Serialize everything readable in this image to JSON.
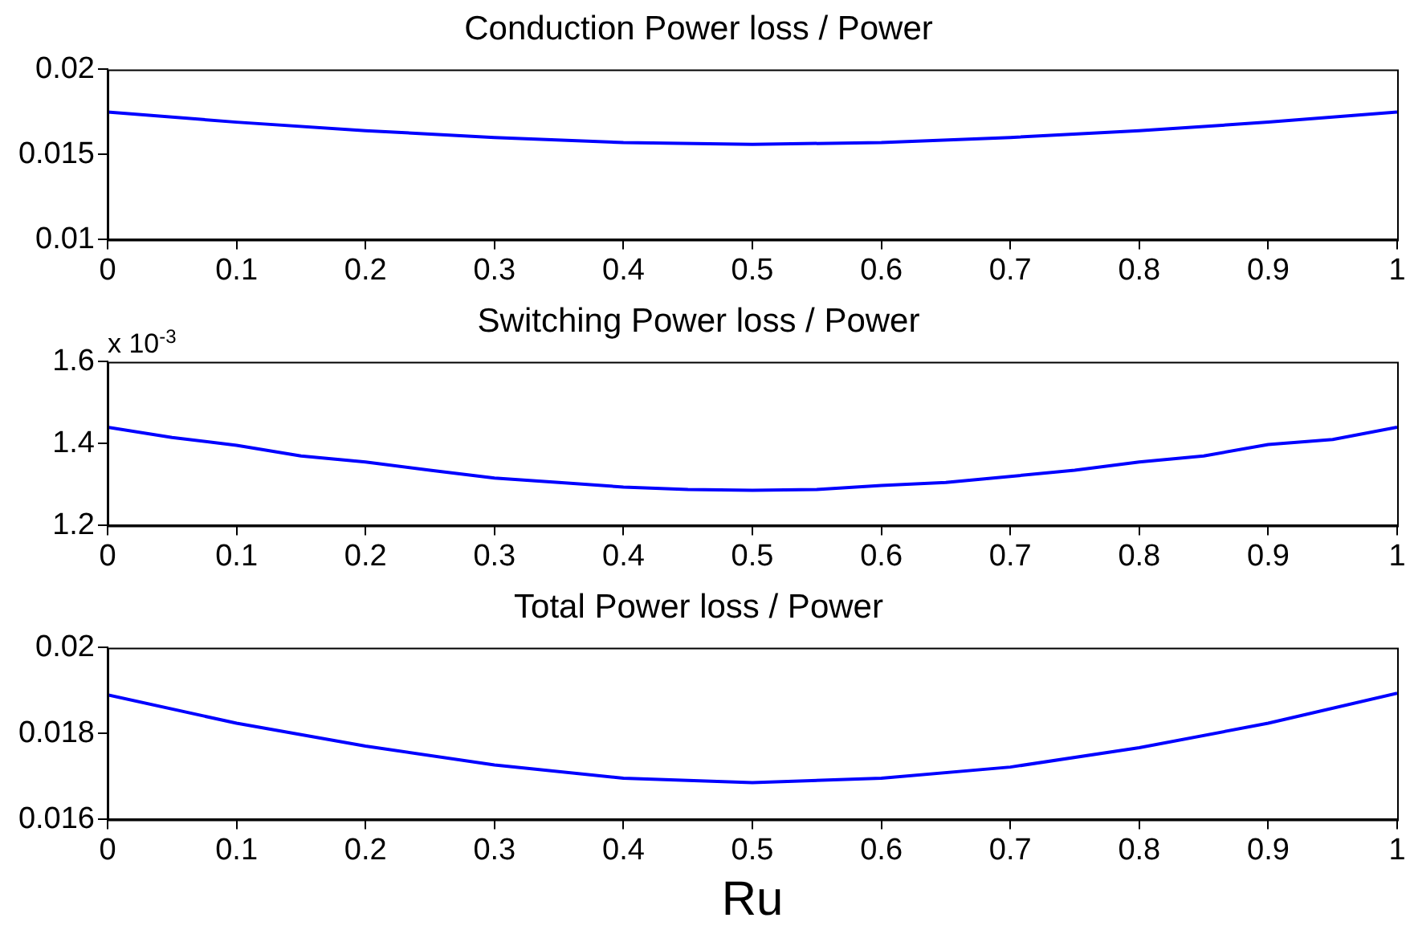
{
  "chart_data": [
    {
      "type": "line",
      "title": "Conduction Power loss / Power",
      "x": [
        0,
        0.1,
        0.2,
        0.3,
        0.4,
        0.5,
        0.6,
        0.7,
        0.8,
        0.9,
        1
      ],
      "series": [
        {
          "color": "#0000ff",
          "values": [
            0.0175,
            0.0169,
            0.0164,
            0.016,
            0.0157,
            0.0156,
            0.0157,
            0.016,
            0.0164,
            0.0169,
            0.0175
          ]
        }
      ],
      "xlim": [
        0,
        1
      ],
      "xticks": [
        0,
        0.1,
        0.2,
        0.3,
        0.4,
        0.5,
        0.6,
        0.7,
        0.8,
        0.9,
        1
      ],
      "ylim": [
        0.01,
        0.02
      ],
      "yticks": [
        0.01,
        0.015,
        0.02
      ],
      "grid": false,
      "legend": false
    },
    {
      "type": "line",
      "title": "Switching Power loss / Power",
      "annotations": [
        "x 10$^{-3}$"
      ],
      "x": [
        0,
        0.05,
        0.1,
        0.15,
        0.2,
        0.25,
        0.3,
        0.35,
        0.4,
        0.45,
        0.5,
        0.55,
        0.6,
        0.65,
        0.7,
        0.75,
        0.8,
        0.85,
        0.9,
        0.95,
        1
      ],
      "series": [
        {
          "color": "#0000ff",
          "values": [
            1.44,
            1.415,
            1.396,
            1.37,
            1.355,
            1.335,
            1.316,
            1.305,
            1.294,
            1.288,
            1.286,
            1.288,
            1.298,
            1.305,
            1.32,
            1.335,
            1.355,
            1.37,
            1.398,
            1.41,
            1.44
          ]
        }
      ],
      "xlim": [
        0,
        1
      ],
      "xticks": [
        0,
        0.1,
        0.2,
        0.3,
        0.4,
        0.5,
        0.6,
        0.7,
        0.8,
        0.9,
        1
      ],
      "ylim": [
        1.2,
        1.6
      ],
      "yticks": [
        1.2,
        1.4,
        1.6
      ],
      "grid": false,
      "legend": false
    },
    {
      "type": "line",
      "title": "Total Power loss / Power",
      "xlabel": "Ru",
      "x": [
        0,
        0.1,
        0.2,
        0.3,
        0.4,
        0.5,
        0.6,
        0.7,
        0.8,
        0.9,
        1
      ],
      "series": [
        {
          "color": "#0000ff",
          "values": [
            0.0189,
            0.01824,
            0.01771,
            0.01727,
            0.01696,
            0.01686,
            0.01696,
            0.01722,
            0.01767,
            0.01824,
            0.01894
          ]
        }
      ],
      "xlim": [
        0,
        1
      ],
      "xticks": [
        0,
        0.1,
        0.2,
        0.3,
        0.4,
        0.5,
        0.6,
        0.7,
        0.8,
        0.9,
        1
      ],
      "ylim": [
        0.016,
        0.02
      ],
      "yticks": [
        0.016,
        0.018,
        0.02
      ],
      "grid": false,
      "legend": false
    }
  ]
}
